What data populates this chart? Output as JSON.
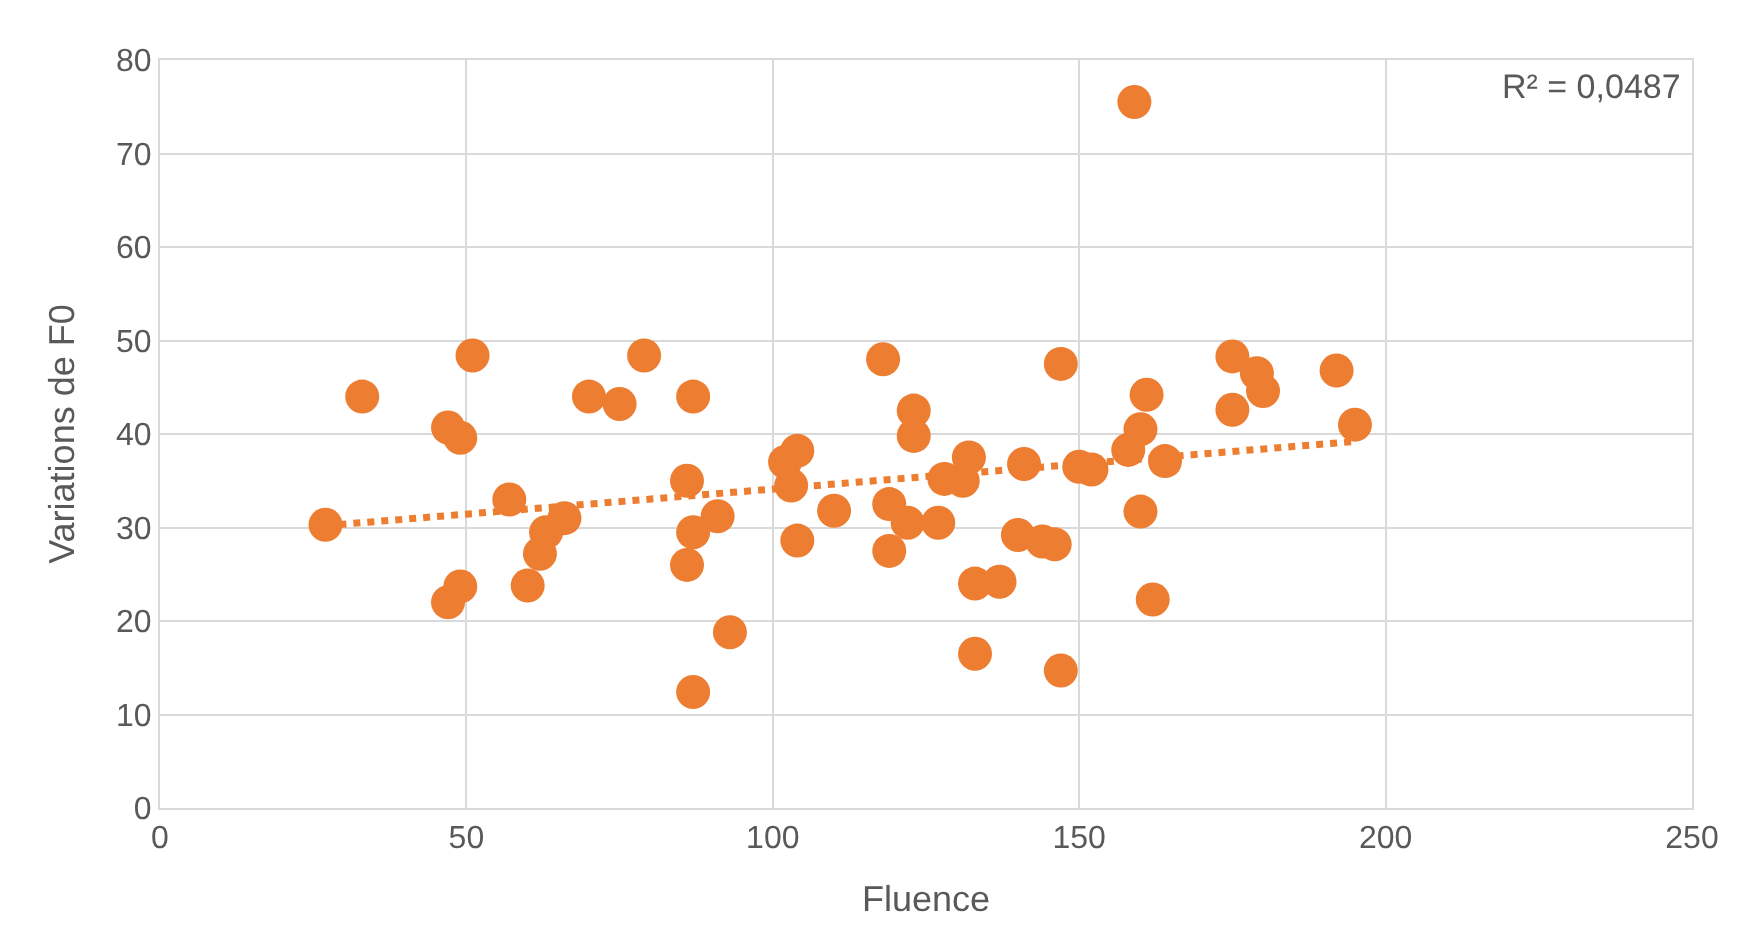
{
  "chart_data": {
    "type": "scatter",
    "xlabel": "Fluence",
    "ylabel": "Variations de F0",
    "xlim": [
      0,
      250
    ],
    "xticks": [
      0,
      50,
      100,
      150,
      200,
      250
    ],
    "ylim": [
      0,
      80
    ],
    "yticks": [
      0,
      10,
      20,
      30,
      40,
      50,
      60,
      70,
      80
    ],
    "grid": true,
    "series": [
      {
        "color": "#ed7d31",
        "marker": "circle",
        "x": [
          27,
          33,
          47,
          47,
          49,
          49,
          51,
          57,
          60,
          62,
          63,
          66,
          70,
          75,
          79,
          86,
          86,
          87,
          87,
          87,
          91,
          93,
          102,
          103,
          104,
          104,
          110,
          118,
          119,
          119,
          122,
          123,
          123,
          127,
          128,
          131,
          132,
          133,
          133,
          137,
          140,
          141,
          144,
          146,
          147,
          147,
          150,
          152,
          158,
          159,
          160,
          160,
          161,
          162,
          164,
          175,
          175,
          179,
          180,
          192,
          195
        ],
        "values": [
          30.3,
          44,
          40.7,
          22,
          23.7,
          39.6,
          48.4,
          33,
          23.8,
          27.2,
          29.5,
          31,
          44,
          43.2,
          48.4,
          26,
          35,
          44,
          29.5,
          12.4,
          31.2,
          18.8,
          37,
          34.5,
          38.2,
          28.6,
          31.8,
          48,
          32.5,
          27.5,
          30.5,
          42.5,
          39.8,
          30.5,
          35.2,
          35,
          37.5,
          24,
          16.5,
          24.2,
          29.2,
          36.8,
          28.5,
          28.2,
          47.5,
          14.7,
          36.5,
          36.2,
          38.3,
          75.5,
          40.5,
          31.7,
          44.2,
          22.3,
          37.1,
          48.3,
          42.6,
          46.5,
          44.6,
          46.8,
          41
        ]
      },
      {
        "type": "line",
        "color": "#ed7d31",
        "line_style": "dotted",
        "x": [
          27,
          195
        ],
        "values": [
          30.2,
          39.2
        ]
      }
    ],
    "annotations": [
      "R² = 0,0487"
    ]
  }
}
